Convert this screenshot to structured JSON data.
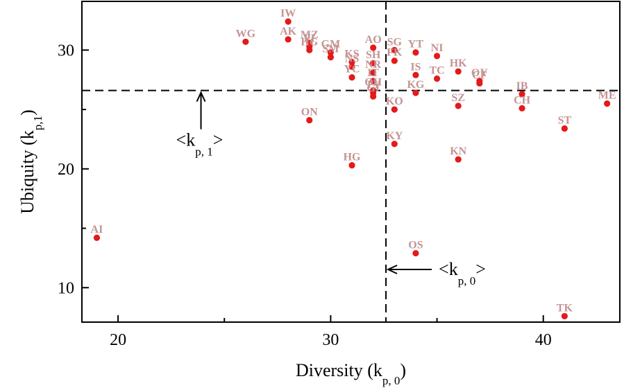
{
  "chart_data": {
    "type": "scatter",
    "xlabel": {
      "main": "Diversity (k",
      "sub": "p, 0",
      "close": ")"
    },
    "ylabel": {
      "main": "Ubiquity (k",
      "sub": "p,1",
      "close": ")"
    },
    "xlim": [
      18.3,
      43.6
    ],
    "ylim": [
      7.1,
      34.1
    ],
    "xticks_major": [
      20,
      30,
      40
    ],
    "xticks_minor": [
      25,
      35
    ],
    "yticks_major": [
      10,
      20,
      30
    ],
    "yticks_minor": [
      15,
      25
    ],
    "point_color": "#e31a1c",
    "label_color": "#c49494",
    "mean_x": 32.6,
    "mean_y": 26.6,
    "annotations": {
      "kp1": {
        "open": "<k",
        "sub": "p, 1",
        "close": ">"
      },
      "kp0": {
        "open": "<k",
        "sub": "p, 0",
        "close": ">"
      }
    },
    "points": [
      {
        "label": "AI",
        "x": 19,
        "y": 14.2
      },
      {
        "label": "WG",
        "x": 26,
        "y": 30.7
      },
      {
        "label": "IW",
        "x": 28,
        "y": 32.4
      },
      {
        "label": "AK",
        "x": 28,
        "y": 30.9
      },
      {
        "label": "MZ",
        "x": 29,
        "y": 30.6
      },
      {
        "label": "FI",
        "x": 29,
        "y": 30.3
      },
      {
        "label": "HG",
        "x": 29,
        "y": 30.0
      },
      {
        "label": "ON",
        "x": 29,
        "y": 24.1
      },
      {
        "label": "GM",
        "x": 30,
        "y": 29.8
      },
      {
        "label": "SM",
        "x": 30,
        "y": 29.4
      },
      {
        "label": "KS",
        "x": 31,
        "y": 29.0
      },
      {
        "label": "NS",
        "x": 31,
        "y": 28.6
      },
      {
        "label": "YC",
        "x": 31,
        "y": 27.7
      },
      {
        "label": "HG",
        "x": 31,
        "y": 20.3
      },
      {
        "label": "AO",
        "x": 32,
        "y": 30.2
      },
      {
        "label": "SH",
        "x": 32,
        "y": 28.9
      },
      {
        "label": "NR",
        "x": 32,
        "y": 28.1
      },
      {
        "label": "IT",
        "x": 32,
        "y": 27.4
      },
      {
        "label": "OH",
        "x": 32,
        "y": 26.6
      },
      {
        "label": "TY",
        "x": 32,
        "y": 26.4
      },
      {
        "label": "GI",
        "x": 32,
        "y": 26.1
      },
      {
        "label": "SG",
        "x": 33,
        "y": 30.0
      },
      {
        "label": "FK",
        "x": 33,
        "y": 29.1
      },
      {
        "label": "KO",
        "x": 33,
        "y": 25.0
      },
      {
        "label": "KY",
        "x": 33,
        "y": 22.1
      },
      {
        "label": "YT",
        "x": 34,
        "y": 29.8
      },
      {
        "label": "IS",
        "x": 34,
        "y": 27.9
      },
      {
        "label": "KG",
        "x": 34,
        "y": 26.4
      },
      {
        "label": "OS",
        "x": 34,
        "y": 12.9
      },
      {
        "label": "NI",
        "x": 35,
        "y": 29.5
      },
      {
        "label": "TC",
        "x": 35,
        "y": 27.6
      },
      {
        "label": "HK",
        "x": 36,
        "y": 28.2
      },
      {
        "label": "SZ",
        "x": 36,
        "y": 25.3
      },
      {
        "label": "KN",
        "x": 36,
        "y": 20.8
      },
      {
        "label": "OY",
        "x": 37,
        "y": 27.4
      },
      {
        "label": "CF",
        "x": 37,
        "y": 27.2
      },
      {
        "label": "IB",
        "x": 39,
        "y": 26.3
      },
      {
        "label": "CH",
        "x": 39,
        "y": 25.1
      },
      {
        "label": "ST",
        "x": 41,
        "y": 23.4
      },
      {
        "label": "TK",
        "x": 41,
        "y": 7.6
      },
      {
        "label": "ME",
        "x": 43,
        "y": 25.5
      }
    ]
  }
}
